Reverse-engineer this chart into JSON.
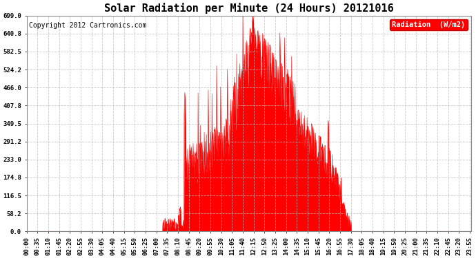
{
  "title": "Solar Radiation per Minute (24 Hours) 20121016",
  "copyright_text": "Copyright 2012 Cartronics.com",
  "legend_label": "Radiation  (W/m2)",
  "yticks": [
    0.0,
    58.2,
    116.5,
    174.8,
    233.0,
    291.2,
    349.5,
    407.8,
    466.0,
    524.2,
    582.5,
    640.8,
    699.0
  ],
  "ymax": 699.0,
  "ymin": 0.0,
  "fill_color": "#ff0000",
  "line_color": "#ff0000",
  "background_color": "#ffffff",
  "grid_color": "#bbbbbb",
  "legend_bg": "#ff0000",
  "legend_text_color": "#ffffff",
  "title_fontsize": 11,
  "tick_fontsize": 6.5,
  "copyright_fontsize": 7,
  "figwidth": 6.9,
  "figheight": 3.75,
  "dpi": 100,
  "xtick_step": 35
}
